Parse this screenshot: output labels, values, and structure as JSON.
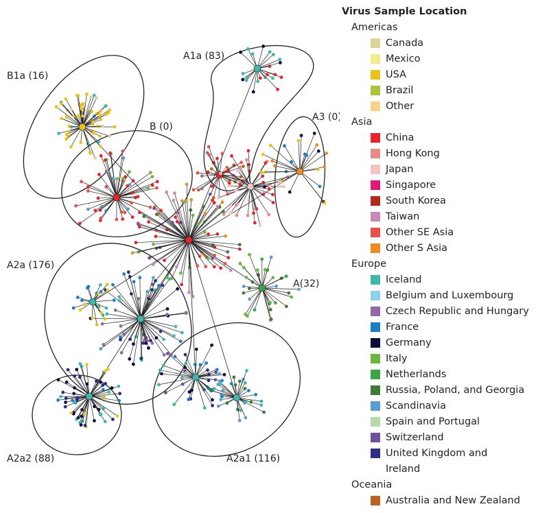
{
  "clusters": [
    {
      "label": "B1a (16)"
    },
    {
      "label": "A1a (83)"
    },
    {
      "label": "B (0)"
    },
    {
      "label": "A3 (0)"
    },
    {
      "label": "A2a (176)"
    },
    {
      "label": "A(32)"
    },
    {
      "label": "A2a2 (88)"
    },
    {
      "label": "A2a1 (116)"
    }
  ],
  "legend": {
    "title": "Virus Sample Location",
    "groups": [
      {
        "name": "Americas",
        "items": [
          {
            "label": "Canada",
            "color": "#ddd49a"
          },
          {
            "label": "Mexico",
            "color": "#f3ec8a"
          },
          {
            "label": "USA",
            "color": "#e8c31c"
          },
          {
            "label": "Brazil",
            "color": "#a9c63a"
          },
          {
            "label": "Other",
            "color": "#f8d38c"
          }
        ]
      },
      {
        "name": "Asia",
        "items": [
          {
            "label": "China",
            "color": "#e8232a"
          },
          {
            "label": "Hong Kong",
            "color": "#ea8a86"
          },
          {
            "label": "Japan",
            "color": "#f4c3c3"
          },
          {
            "label": "Singapore",
            "color": "#e01878"
          },
          {
            "label": "South Korea",
            "color": "#b22a1e"
          },
          {
            "label": "Taiwan",
            "color": "#c988bb"
          },
          {
            "label": "Other SE Asia",
            "color": "#e8504a"
          },
          {
            "label": "Other S Asia",
            "color": "#ee8a22"
          }
        ]
      },
      {
        "name": "Europe",
        "items": [
          {
            "label": "Iceland",
            "color": "#3fb7ad"
          },
          {
            "label": "Belgium and Luxembourg",
            "color": "#8dd1ef"
          },
          {
            "label": "Czech Republic and Hungary",
            "color": "#9467a8"
          },
          {
            "label": "France",
            "color": "#1b7fc2"
          },
          {
            "label": "Germany",
            "color": "#0c0c40"
          },
          {
            "label": "Italy",
            "color": "#6bb63e"
          },
          {
            "label": "Netherlands",
            "color": "#3aa447"
          },
          {
            "label": "Russia, Poland, and Georgia",
            "color": "#3e7b35"
          },
          {
            "label": "Scandinavia",
            "color": "#5a9bd5"
          },
          {
            "label": "Spain and Portugal",
            "color": "#b7dba6"
          },
          {
            "label": "Switzerland",
            "color": "#6e4fa0"
          },
          {
            "label": "United Kingdom and\nIreland",
            "color": "#2b2d86"
          }
        ]
      },
      {
        "name": "Oceania",
        "items": [
          {
            "label": "Australia and New Zealand",
            "color": "#b9651f"
          }
        ]
      }
    ]
  }
}
